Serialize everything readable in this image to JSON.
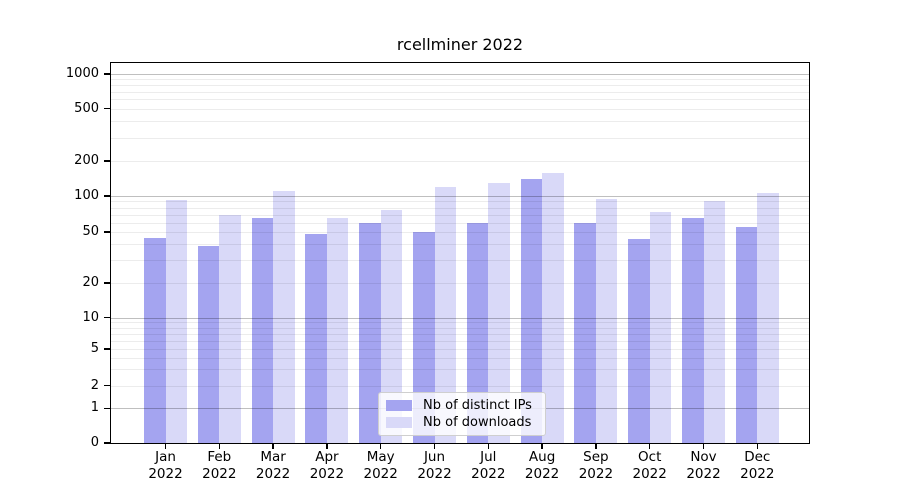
{
  "chart_data": {
    "type": "bar",
    "title": "rcellminer 2022",
    "categories": [
      "Jan 2022",
      "Feb 2022",
      "Mar 2022",
      "Apr 2022",
      "May 2022",
      "Jun 2022",
      "Jul 2022",
      "Aug 2022",
      "Sep 2022",
      "Oct 2022",
      "Nov 2022",
      "Dec 2022"
    ],
    "x_tick_months": [
      "Jan",
      "Feb",
      "Mar",
      "Apr",
      "May",
      "Jun",
      "Jul",
      "Aug",
      "Sep",
      "Oct",
      "Nov",
      "Dec"
    ],
    "x_tick_year": "2022",
    "series": [
      {
        "name": "Nb of distinct IPs",
        "color": "#a4a4f0",
        "values": [
          45,
          39,
          65,
          48,
          60,
          50,
          59,
          140,
          59,
          44,
          65,
          55
        ]
      },
      {
        "name": "Nb of downloads",
        "color": "#d9d9f8",
        "values": [
          93,
          70,
          110,
          66,
          77,
          120,
          130,
          158,
          94,
          74,
          91,
          106
        ]
      }
    ],
    "xlabel": "",
    "ylabel": "",
    "yscale": "log-like with 0 baseline",
    "ylim": [
      0,
      1250
    ],
    "y_ticks": [
      1000,
      500,
      200,
      100,
      50,
      20,
      10,
      5,
      2,
      1,
      0
    ],
    "y_major_gridlines": [
      1,
      10,
      100,
      1000
    ],
    "y_minor_gridlines": [
      2,
      3,
      4,
      5,
      6,
      7,
      8,
      9,
      20,
      30,
      40,
      50,
      60,
      70,
      80,
      90,
      200,
      300,
      400,
      500,
      600,
      700,
      800,
      900
    ],
    "grid": true,
    "legend_position": "lower center"
  },
  "colors": {
    "bar_distinct_ips": "#a4a4f0",
    "bar_downloads": "#d9d9f8",
    "gridline_major": "#c2c2c2",
    "gridline_minor": "#ebebeb",
    "axis_frame": "#000000",
    "legend_background": "#ffffff",
    "legend_border": "#cfcfcf"
  }
}
